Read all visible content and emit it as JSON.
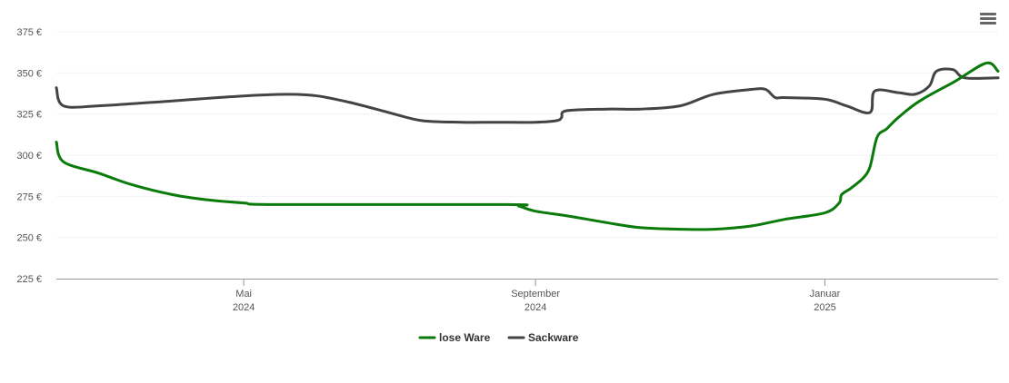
{
  "menu": {
    "icon": "hamburger-menu-icon"
  },
  "chart_data": {
    "type": "line",
    "title": "",
    "xlabel": "",
    "ylabel": "",
    "ylim": [
      225,
      375
    ],
    "yticks": [
      "375 €",
      "350 €",
      "325 €",
      "300 €",
      "275 €",
      "250 €",
      "225 €"
    ],
    "ytick_values": [
      375,
      350,
      325,
      300,
      275,
      250,
      225
    ],
    "xlim": [
      "2024-02-12",
      "2025-03-15"
    ],
    "xticks": [
      {
        "date": "2024-05-01",
        "month": "Mai",
        "year": "2024"
      },
      {
        "date": "2024-09-01",
        "month": "September",
        "year": "2024"
      },
      {
        "date": "2025-01-01",
        "month": "Januar",
        "year": "2025"
      }
    ],
    "grid": true,
    "legend": "bottom-center",
    "series": [
      {
        "name": "lose Ware",
        "color": "#0a7a0a",
        "points": [
          [
            "2024-02-12",
            308
          ],
          [
            "2024-02-15",
            296
          ],
          [
            "2024-03-01",
            289
          ],
          [
            "2024-03-15",
            282
          ],
          [
            "2024-04-01",
            276
          ],
          [
            "2024-04-15",
            273
          ],
          [
            "2024-05-01",
            271
          ],
          [
            "2024-05-15",
            270
          ],
          [
            "2024-08-20",
            270
          ],
          [
            "2024-08-25",
            269
          ],
          [
            "2024-09-01",
            266
          ],
          [
            "2024-09-15",
            263
          ],
          [
            "2024-10-01",
            259
          ],
          [
            "2024-10-15",
            256
          ],
          [
            "2024-11-01",
            255
          ],
          [
            "2024-11-15",
            255
          ],
          [
            "2024-12-01",
            257
          ],
          [
            "2024-12-15",
            261
          ],
          [
            "2025-01-01",
            265
          ],
          [
            "2025-01-07",
            271
          ],
          [
            "2025-01-08",
            276
          ],
          [
            "2025-01-12",
            280
          ],
          [
            "2025-01-17",
            286
          ],
          [
            "2025-01-20",
            293
          ],
          [
            "2025-01-23",
            311
          ],
          [
            "2025-01-27",
            316
          ],
          [
            "2025-02-01",
            323
          ],
          [
            "2025-02-10",
            333
          ],
          [
            "2025-02-25",
            345
          ],
          [
            "2025-03-10",
            356
          ],
          [
            "2025-03-15",
            351
          ]
        ]
      },
      {
        "name": "Sackware",
        "color": "#444444",
        "points": [
          [
            "2024-02-12",
            341
          ],
          [
            "2024-02-15",
            330
          ],
          [
            "2024-03-01",
            330
          ],
          [
            "2024-04-01",
            333
          ],
          [
            "2024-05-01",
            336
          ],
          [
            "2024-05-20",
            337
          ],
          [
            "2024-06-01",
            336
          ],
          [
            "2024-06-15",
            332
          ],
          [
            "2024-07-01",
            326
          ],
          [
            "2024-07-15",
            321
          ],
          [
            "2024-08-01",
            320
          ],
          [
            "2024-08-15",
            320
          ],
          [
            "2024-09-01",
            320
          ],
          [
            "2024-09-10",
            321
          ],
          [
            "2024-09-12",
            323
          ],
          [
            "2024-09-14",
            327
          ],
          [
            "2024-10-01",
            328
          ],
          [
            "2024-10-15",
            328
          ],
          [
            "2024-11-01",
            330
          ],
          [
            "2024-11-15",
            337
          ],
          [
            "2024-12-01",
            340
          ],
          [
            "2024-12-07",
            340
          ],
          [
            "2024-12-11",
            335
          ],
          [
            "2024-12-15",
            335
          ],
          [
            "2025-01-01",
            334
          ],
          [
            "2025-01-10",
            330
          ],
          [
            "2025-01-20",
            326
          ],
          [
            "2025-01-22",
            339
          ],
          [
            "2025-02-01",
            338
          ],
          [
            "2025-02-08",
            337
          ],
          [
            "2025-02-14",
            342
          ],
          [
            "2025-02-17",
            351
          ],
          [
            "2025-02-24",
            352
          ],
          [
            "2025-03-01",
            347
          ],
          [
            "2025-03-15",
            347
          ]
        ]
      }
    ]
  }
}
